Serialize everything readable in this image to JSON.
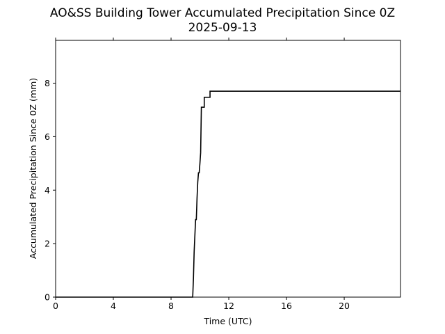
{
  "chart_data": {
    "type": "line",
    "title": "AO&SS Building Tower Accumulated Precipitation Since 0Z",
    "subtitle": "2025-09-13",
    "x_label": "Time (UTC)",
    "y_label": "Accumulated Precipitation Since 0Z (mm)",
    "x": [
      0,
      9.5,
      9.55,
      9.6,
      9.65,
      9.7,
      9.75,
      9.8,
      9.85,
      9.9,
      9.95,
      10.0,
      10.05,
      10.1,
      10.3,
      10.3,
      10.7,
      10.7,
      23.9
    ],
    "series": [
      {
        "name": "Accumulated Precipitation",
        "color": "#000000",
        "values": [
          0,
          0,
          0.7,
          1.7,
          2.3,
          2.9,
          2.9,
          3.7,
          4.3,
          4.65,
          4.65,
          5.0,
          5.4,
          7.1,
          7.1,
          7.47,
          7.47,
          7.7,
          7.7
        ]
      }
    ],
    "xlim": [
      0,
      23.9
    ],
    "xticks": [
      0,
      4,
      8,
      12,
      16,
      20
    ],
    "ylim": [
      0,
      9.6
    ],
    "yticks": [
      0,
      2,
      4,
      6,
      8
    ],
    "grid": false
  }
}
